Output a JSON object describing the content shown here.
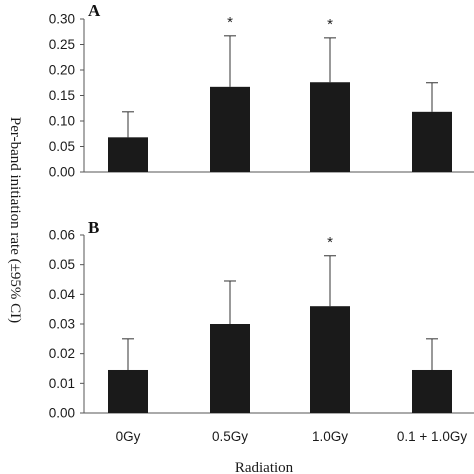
{
  "chart_data": [
    {
      "type": "bar",
      "panel_label": "A",
      "categories": [
        "0Gy",
        "0.5Gy",
        "1.0Gy",
        "0.1 + 1.0Gy"
      ],
      "values": [
        0.068,
        0.167,
        0.176,
        0.118
      ],
      "error_upper": [
        0.118,
        0.267,
        0.263,
        0.175
      ],
      "significance": [
        "",
        "*",
        "*",
        ""
      ],
      "ylim": [
        0,
        0.3
      ],
      "yticks": [
        "0.00",
        "0.05",
        "0.10",
        "0.15",
        "0.20",
        "0.25",
        "0.30"
      ],
      "bar_color": "#1a1a1a",
      "grid": false
    },
    {
      "type": "bar",
      "panel_label": "B",
      "categories": [
        "0Gy",
        "0.5Gy",
        "1.0Gy",
        "0.1 + 1.0Gy"
      ],
      "values": [
        0.0145,
        0.03,
        0.036,
        0.0145
      ],
      "error_upper": [
        0.025,
        0.0445,
        0.053,
        0.025
      ],
      "significance": [
        "",
        "",
        "*",
        ""
      ],
      "ylim": [
        0,
        0.06
      ],
      "yticks": [
        "0.00",
        "0.01",
        "0.02",
        "0.03",
        "0.04",
        "0.05",
        "0.06"
      ],
      "bar_color": "#1a1a1a",
      "grid": false
    }
  ],
  "shared": {
    "ylabel": "Per-band initiation rate (±95% CI)",
    "xlabel": "Radiation",
    "xtick_labels": [
      "0Gy",
      "0.5Gy",
      "1.0Gy",
      "0.1 + 1.0Gy"
    ]
  }
}
